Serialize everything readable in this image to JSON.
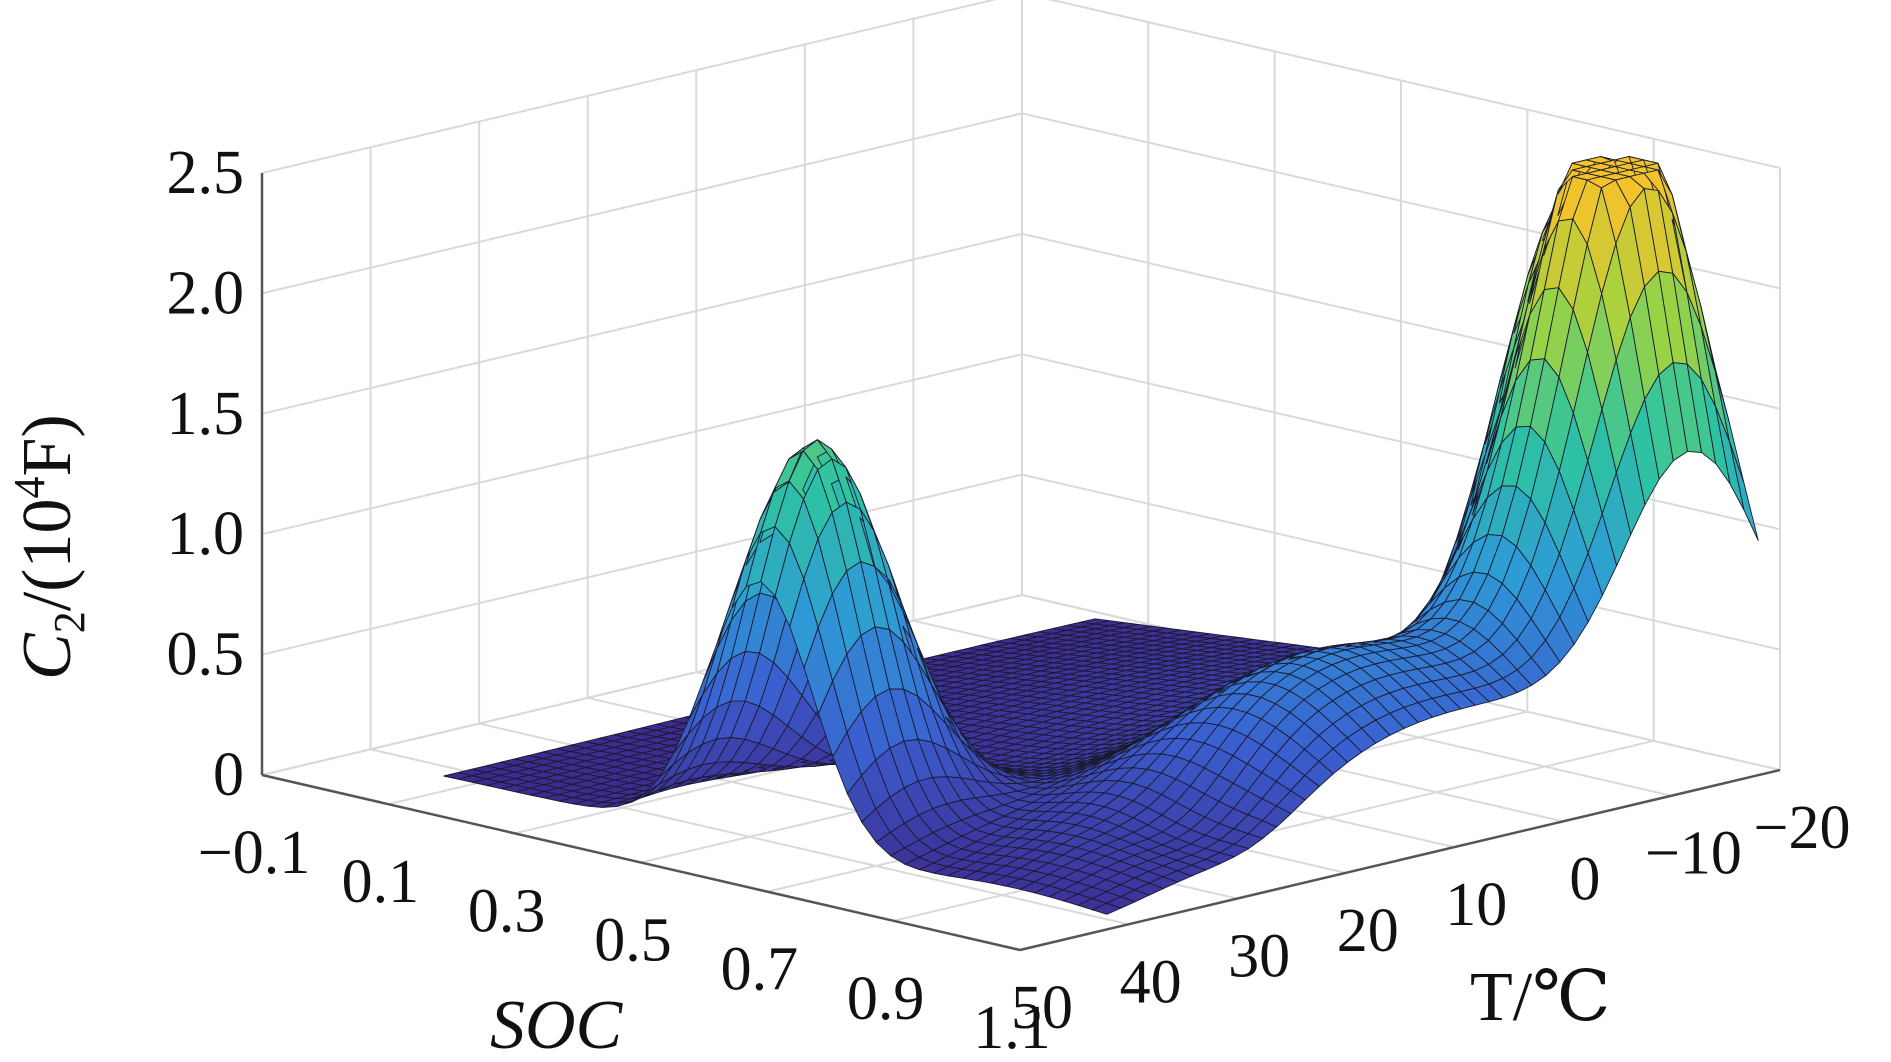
{
  "chart_data": {
    "type": "surface3d",
    "zlabel": "C2/(10^4F)",
    "zlabel_parts": {
      "main": "C",
      "sub": "2",
      "mid": "/(10",
      "sup": "4",
      "tail": "F)"
    },
    "xlabel": "SOC",
    "ylabel": "T/℃",
    "x_ticks": [
      "−0.1",
      "0.1",
      "0.3",
      "0.5",
      "0.7",
      "0.9",
      "1.1"
    ],
    "y_ticks": [
      "−20",
      "−10",
      "0",
      "10",
      "20",
      "30",
      "40",
      "50"
    ],
    "z_ticks": [
      "0",
      "0.5",
      "1.0",
      "1.5",
      "2.0",
      "2.5"
    ],
    "xlim": [
      -0.1,
      1.1
    ],
    "ylim": [
      -20,
      50
    ],
    "zlim": [
      0,
      2.5
    ],
    "grid": true,
    "colormap": [
      "#3e2a8f",
      "#3a5fd0",
      "#2e9bd6",
      "#2ec4a0",
      "#9fd340",
      "#f5c22a"
    ],
    "peaks": [
      {
        "soc": 0.98,
        "T": -12,
        "C2": 2.45
      },
      {
        "soc": 0.8,
        "T": -18,
        "C2": 1.75
      },
      {
        "soc": 0.55,
        "T": 37,
        "C2": 1.62
      }
    ]
  }
}
